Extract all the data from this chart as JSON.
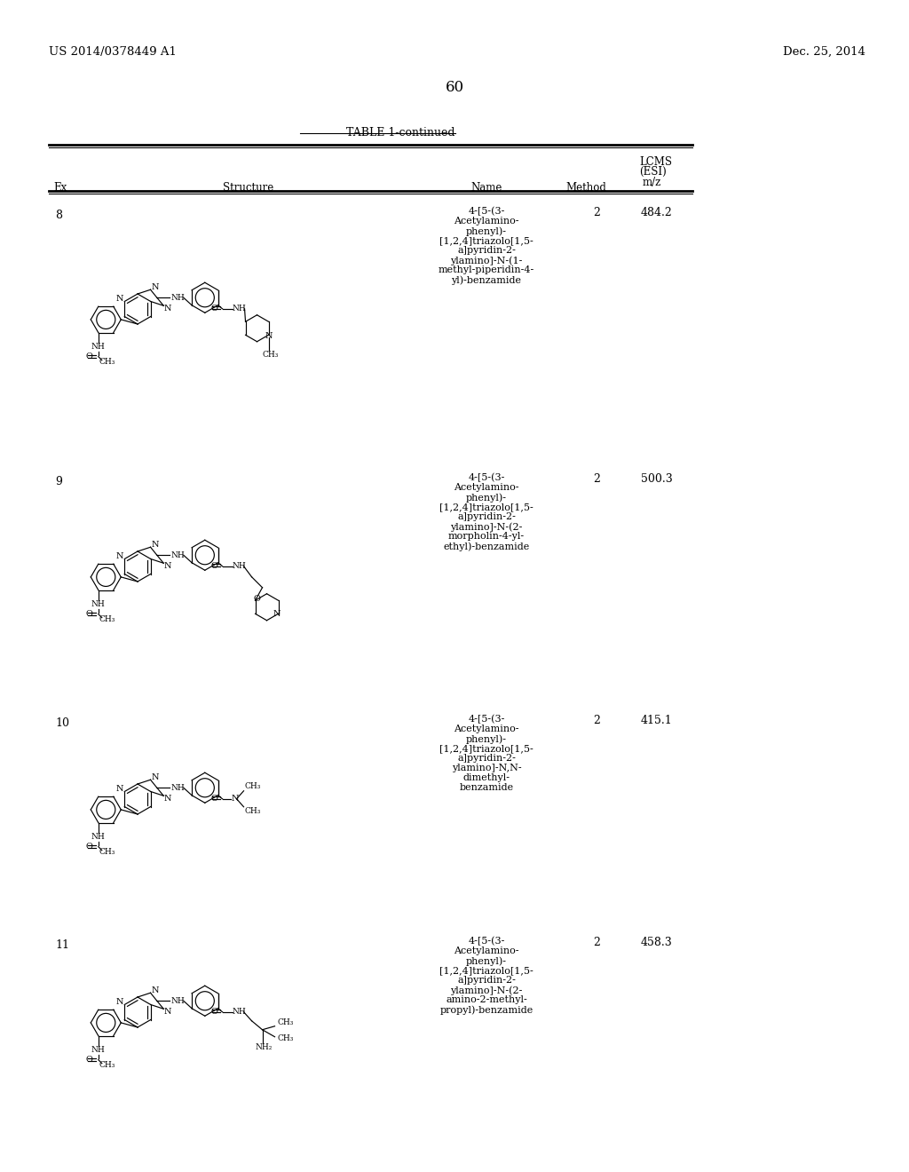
{
  "patent_left": "US 2014/0378449 A1",
  "patent_right": "Dec. 25, 2014",
  "page_number": "60",
  "table_title": "TABLE 1-continued",
  "col_headers": [
    "Ex",
    "Structure",
    "Name",
    "Method",
    "LCMS\n(ESI)\nm/z"
  ],
  "rows": [
    {
      "ex": "8",
      "name": "4-[5-(3-\nAcetylamino-\nphenyl)-\n[1,2,4]triazolo[1,5-\na]pyridin-2-\nylamino]-N-(1-\nmethyl-piperidin-4-\nyl)-benzamide",
      "method": "2",
      "mz": "484.2"
    },
    {
      "ex": "9",
      "name": "4-[5-(3-\nAcetylamino-\nphenyl)-\n[1,2,4]triazolo[1,5-\na]pyridin-2-\nylamino]-N-(2-\nmorpholin-4-yl-\nethyl)-benzamide",
      "method": "2",
      "mz": "500.3"
    },
    {
      "ex": "10",
      "name": "4-[5-(3-\nAcetylamino-\nphenyl)-\n[1,2,4]triazolo[1,5-\na]pyridin-2-\nylamino]-N,N-\ndimethyl-\nbenzamide",
      "method": "2",
      "mz": "415.1"
    },
    {
      "ex": "11",
      "name": "4-[5-(3-\nAcetylamino-\nphenyl)-\n[1,2,4]triazolo[1,5-\na]pyridin-2-\nylamino]-N-(2-\namino-2-methyl-\npropyl)-benzamide",
      "method": "2",
      "mz": "458.3"
    }
  ],
  "background_color": "#ffffff"
}
